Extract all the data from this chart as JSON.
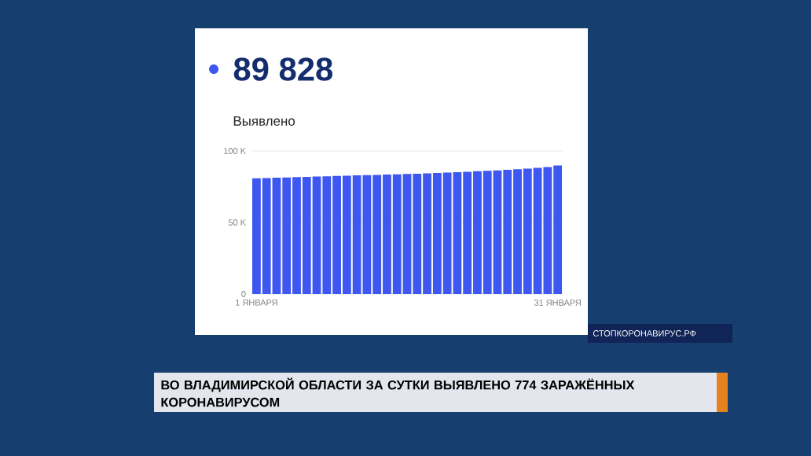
{
  "chart_data": {
    "type": "bar",
    "title": "89 828",
    "subtitle": "Выявлено",
    "categories": [
      "1 ЯНВАРЯ",
      null,
      null,
      null,
      null,
      null,
      null,
      null,
      null,
      null,
      null,
      null,
      null,
      null,
      null,
      null,
      null,
      null,
      null,
      null,
      null,
      null,
      null,
      null,
      null,
      null,
      null,
      null,
      null,
      null,
      "31 ЯНВАРЯ"
    ],
    "values": [
      80900,
      81100,
      81300,
      81500,
      81700,
      81900,
      82100,
      82300,
      82500,
      82700,
      82900,
      83100,
      83300,
      83500,
      83700,
      83900,
      84100,
      84300,
      84600,
      84900,
      85200,
      85500,
      85800,
      86100,
      86400,
      86800,
      87200,
      87700,
      88200,
      88800,
      89828
    ],
    "color": "#3d57f0",
    "ylim": [
      0,
      100000
    ],
    "yticks": [
      {
        "value": 0,
        "label": "0"
      },
      {
        "value": 50000,
        "label": "50 K"
      },
      {
        "value": 100000,
        "label": "100 K"
      }
    ],
    "grid": "y",
    "annotations": [
      "СТОПКОРОНАВИРУС.РФ",
      "ВО ВЛАДИМИРСКОЙ ОБЛАСТИ ЗА СУТКИ ВЫЯВЛЕНО 774 ЗАРАЖЁННЫХ КОРОНАВИРУСОМ"
    ]
  }
}
